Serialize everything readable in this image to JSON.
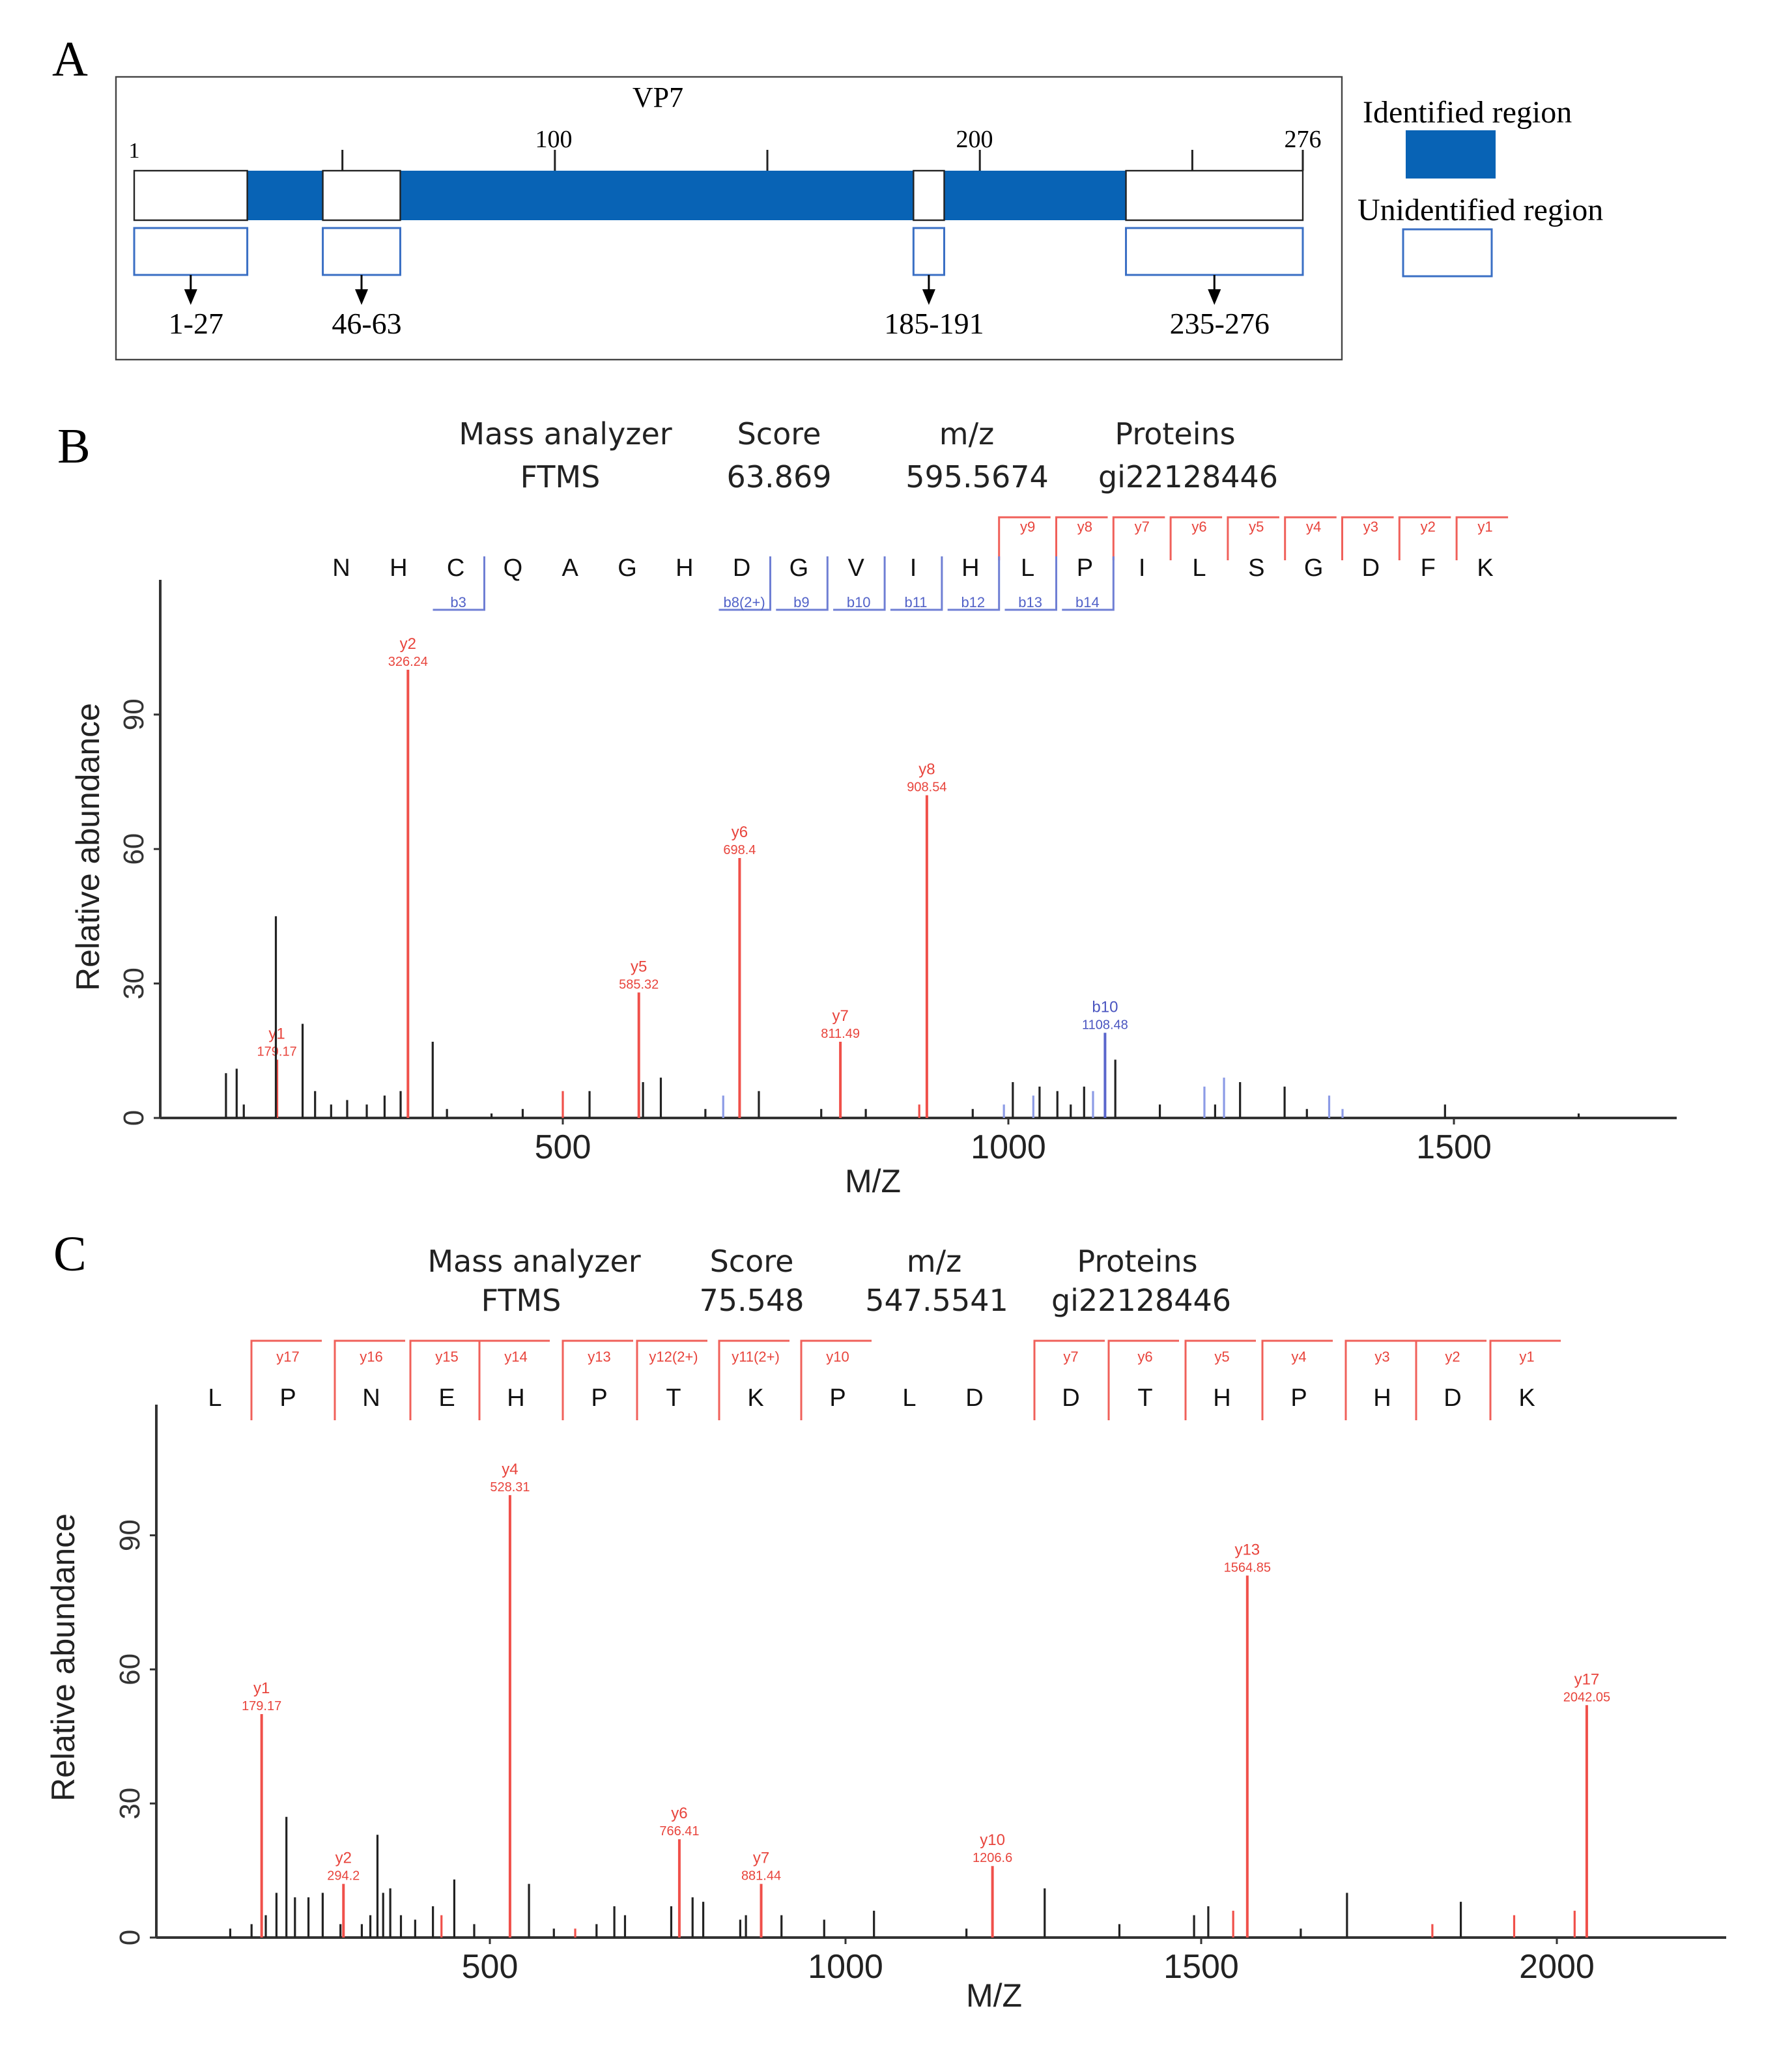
{
  "panel_labels": {
    "a": "A",
    "b": "B",
    "c": "C"
  },
  "panel_a": {
    "title": "VP7",
    "scale_labels": [
      "1",
      "100",
      "200",
      "276"
    ],
    "protein_length": 276,
    "unidentified_regions": [
      {
        "start": 1,
        "end": 27,
        "label": "1-27"
      },
      {
        "start": 46,
        "end": 63,
        "label": "46-63"
      },
      {
        "start": 185,
        "end": 191,
        "label": "185-191"
      },
      {
        "start": 235,
        "end": 276,
        "label": "235-276"
      }
    ],
    "legend": {
      "identified": "Identified region",
      "unidentified": "Unidentified region"
    },
    "colors": {
      "identified": "#0863b5",
      "unidentified_outline": "#3a6fc4"
    }
  },
  "chart_data": [
    {
      "type": "bar",
      "panel": "B",
      "header": {
        "mass_analyzer_label": "Mass analyzer",
        "mass_analyzer": "FTMS",
        "score_label": "Score",
        "score": "63.869",
        "mz_label": "m/z",
        "mz": "595.5674",
        "proteins_label": "Proteins",
        "protein": "gi22128446"
      },
      "sequence": [
        "N",
        "H",
        "C",
        "Q",
        "A",
        "G",
        "H",
        "D",
        "G",
        "V",
        "I",
        "H",
        "L",
        "P",
        "I",
        "L",
        "S",
        "G",
        "D",
        "F",
        "K"
      ],
      "y_ions": [
        {
          "label": "y9",
          "pos": 12
        },
        {
          "label": "y8",
          "pos": 13
        },
        {
          "label": "y7",
          "pos": 14
        },
        {
          "label": "y6",
          "pos": 15
        },
        {
          "label": "y5",
          "pos": 16
        },
        {
          "label": "y4",
          "pos": 17
        },
        {
          "label": "y3",
          "pos": 18
        },
        {
          "label": "y2",
          "pos": 19
        },
        {
          "label": "y1",
          "pos": 20
        }
      ],
      "b_ions": [
        {
          "label": "b3",
          "pos": 2
        },
        {
          "label": "b8(2+)",
          "pos": 7
        },
        {
          "label": "b9",
          "pos": 8
        },
        {
          "label": "b10",
          "pos": 9
        },
        {
          "label": "b11",
          "pos": 10
        },
        {
          "label": "b12",
          "pos": 11
        },
        {
          "label": "b13",
          "pos": 12
        },
        {
          "label": "b14",
          "pos": 13
        }
      ],
      "xlabel": "M/Z",
      "ylabel": "Relative abundance",
      "xticks": [
        "500",
        "1000",
        "1500"
      ],
      "yticks": [
        "0",
        "30",
        "60",
        "90"
      ],
      "xlim": [
        0,
        1760
      ],
      "ylim": [
        0,
        120
      ],
      "peaks": [
        {
          "mz": 179.17,
          "i": 13,
          "type": "y",
          "ion": "y1",
          "mz_label": "179.17"
        },
        {
          "mz": 326.24,
          "i": 100,
          "type": "y",
          "ion": "y2",
          "mz_label": "326.24"
        },
        {
          "mz": 585.32,
          "i": 28,
          "type": "y",
          "ion": "y5",
          "mz_label": "585.32"
        },
        {
          "mz": 698.4,
          "i": 58,
          "type": "y",
          "ion": "y6",
          "mz_label": "698.4"
        },
        {
          "mz": 811.49,
          "i": 17,
          "type": "y",
          "ion": "y7",
          "mz_label": "811.49"
        },
        {
          "mz": 908.54,
          "i": 72,
          "type": "y",
          "ion": "y8",
          "mz_label": "908.54"
        },
        {
          "mz": 1108.48,
          "i": 19,
          "type": "b",
          "ion": "b10",
          "mz_label": "1108.48"
        },
        {
          "mz": 122,
          "i": 10,
          "type": "o"
        },
        {
          "mz": 134,
          "i": 11,
          "type": "o"
        },
        {
          "mz": 142,
          "i": 3,
          "type": "o"
        },
        {
          "mz": 178,
          "i": 45,
          "type": "o"
        },
        {
          "mz": 208,
          "i": 21,
          "type": "o"
        },
        {
          "mz": 222,
          "i": 6,
          "type": "o"
        },
        {
          "mz": 240,
          "i": 3,
          "type": "o"
        },
        {
          "mz": 258,
          "i": 4,
          "type": "o"
        },
        {
          "mz": 280,
          "i": 3,
          "type": "o"
        },
        {
          "mz": 300,
          "i": 5,
          "type": "o"
        },
        {
          "mz": 318,
          "i": 6,
          "type": "o"
        },
        {
          "mz": 354,
          "i": 17,
          "type": "o"
        },
        {
          "mz": 370,
          "i": 2,
          "type": "o"
        },
        {
          "mz": 420,
          "i": 1,
          "type": "o"
        },
        {
          "mz": 455,
          "i": 2,
          "type": "o"
        },
        {
          "mz": 500,
          "i": 6,
          "type": "y"
        },
        {
          "mz": 530,
          "i": 6,
          "type": "o"
        },
        {
          "mz": 590,
          "i": 8,
          "type": "o"
        },
        {
          "mz": 610,
          "i": 9,
          "type": "o"
        },
        {
          "mz": 660,
          "i": 2,
          "type": "o"
        },
        {
          "mz": 680,
          "i": 5,
          "type": "b"
        },
        {
          "mz": 720,
          "i": 6,
          "type": "o"
        },
        {
          "mz": 790,
          "i": 2,
          "type": "o"
        },
        {
          "mz": 840,
          "i": 2,
          "type": "o"
        },
        {
          "mz": 900,
          "i": 3,
          "type": "y"
        },
        {
          "mz": 960,
          "i": 2,
          "type": "o"
        },
        {
          "mz": 995,
          "i": 3,
          "type": "b"
        },
        {
          "mz": 1005,
          "i": 8,
          "type": "o"
        },
        {
          "mz": 1028,
          "i": 5,
          "type": "b"
        },
        {
          "mz": 1035,
          "i": 7,
          "type": "o"
        },
        {
          "mz": 1055,
          "i": 6,
          "type": "o"
        },
        {
          "mz": 1070,
          "i": 3,
          "type": "o"
        },
        {
          "mz": 1085,
          "i": 7,
          "type": "o"
        },
        {
          "mz": 1095,
          "i": 6,
          "type": "b"
        },
        {
          "mz": 1120,
          "i": 13,
          "type": "o"
        },
        {
          "mz": 1170,
          "i": 3,
          "type": "o"
        },
        {
          "mz": 1220,
          "i": 7,
          "type": "b"
        },
        {
          "mz": 1232,
          "i": 3,
          "type": "o"
        },
        {
          "mz": 1242,
          "i": 9,
          "type": "b"
        },
        {
          "mz": 1260,
          "i": 8,
          "type": "o"
        },
        {
          "mz": 1310,
          "i": 7,
          "type": "o"
        },
        {
          "mz": 1335,
          "i": 2,
          "type": "o"
        },
        {
          "mz": 1360,
          "i": 5,
          "type": "b"
        },
        {
          "mz": 1375,
          "i": 2,
          "type": "b"
        },
        {
          "mz": 1490,
          "i": 3,
          "type": "o"
        },
        {
          "mz": 1640,
          "i": 1,
          "type": "o"
        }
      ]
    },
    {
      "type": "bar",
      "panel": "C",
      "header": {
        "mass_analyzer_label": "Mass analyzer",
        "mass_analyzer": "FTMS",
        "score_label": "Score",
        "score": "75.548",
        "mz_label": "m/z",
        "mz": "547.5541",
        "proteins_label": "Proteins",
        "protein": "gi22128446"
      },
      "sequence": [
        "L",
        "P",
        "N",
        "E",
        "H",
        "P",
        "T",
        "K",
        "P",
        "L",
        "D",
        "D",
        "T",
        "H",
        "P",
        "H",
        "D",
        "K"
      ],
      "y_ions": [
        {
          "label": "y17",
          "pos": 1
        },
        {
          "label": "y16",
          "pos": 2
        },
        {
          "label": "y15",
          "pos": 3
        },
        {
          "label": "y14",
          "pos": 4
        },
        {
          "label": "y13",
          "pos": 5
        },
        {
          "label": "y12(2+)",
          "pos": 6
        },
        {
          "label": "y11(2+)",
          "pos": 7
        },
        {
          "label": "y10",
          "pos": 8
        },
        {
          "label": "y7",
          "pos": 11
        },
        {
          "label": "y6",
          "pos": 12
        },
        {
          "label": "y5",
          "pos": 13
        },
        {
          "label": "y4",
          "pos": 14
        },
        {
          "label": "y3",
          "pos": 15
        },
        {
          "label": "y2",
          "pos": 16
        },
        {
          "label": "y1",
          "pos": 17
        }
      ],
      "b_ions": [],
      "xlabel": "M/Z",
      "ylabel": "Relative abundance",
      "xticks": [
        "500",
        "1000",
        "1500",
        "2000"
      ],
      "yticks": [
        "0",
        "30",
        "60",
        "90"
      ],
      "xlim": [
        0,
        2240
      ],
      "ylim": [
        0,
        120
      ],
      "peaks": [
        {
          "mz": 179.17,
          "i": 50,
          "type": "y",
          "ion": "y1",
          "mz_label": "179.17"
        },
        {
          "mz": 294.2,
          "i": 12,
          "type": "y",
          "ion": "y2",
          "mz_label": "294.2"
        },
        {
          "mz": 528.31,
          "i": 99,
          "type": "y",
          "ion": "y4",
          "mz_label": "528.31"
        },
        {
          "mz": 766.41,
          "i": 22,
          "type": "y",
          "ion": "y6",
          "mz_label": "766.41"
        },
        {
          "mz": 881.44,
          "i": 12,
          "type": "y",
          "ion": "y7",
          "mz_label": "881.44"
        },
        {
          "mz": 1206.6,
          "i": 16,
          "type": "y",
          "ion": "y10",
          "mz_label": "1206.6"
        },
        {
          "mz": 1564.85,
          "i": 81,
          "type": "y",
          "ion": "y13",
          "mz_label": "1564.85"
        },
        {
          "mz": 2042.05,
          "i": 52,
          "type": "y",
          "ion": "y17",
          "mz_label": "2042.05"
        },
        {
          "mz": 135,
          "i": 2,
          "type": "o"
        },
        {
          "mz": 165,
          "i": 3,
          "type": "o"
        },
        {
          "mz": 185,
          "i": 5,
          "type": "o"
        },
        {
          "mz": 200,
          "i": 10,
          "type": "o"
        },
        {
          "mz": 214,
          "i": 27,
          "type": "o"
        },
        {
          "mz": 226,
          "i": 9,
          "type": "o"
        },
        {
          "mz": 245,
          "i": 9,
          "type": "o"
        },
        {
          "mz": 265,
          "i": 10,
          "type": "o"
        },
        {
          "mz": 290,
          "i": 3,
          "type": "o"
        },
        {
          "mz": 320,
          "i": 3,
          "type": "o"
        },
        {
          "mz": 332,
          "i": 5,
          "type": "o"
        },
        {
          "mz": 342,
          "i": 23,
          "type": "o"
        },
        {
          "mz": 350,
          "i": 10,
          "type": "o"
        },
        {
          "mz": 360,
          "i": 11,
          "type": "o"
        },
        {
          "mz": 375,
          "i": 5,
          "type": "o"
        },
        {
          "mz": 395,
          "i": 4,
          "type": "o"
        },
        {
          "mz": 420,
          "i": 7,
          "type": "o"
        },
        {
          "mz": 432,
          "i": 5,
          "type": "y"
        },
        {
          "mz": 450,
          "i": 13,
          "type": "o"
        },
        {
          "mz": 478,
          "i": 3,
          "type": "o"
        },
        {
          "mz": 555,
          "i": 12,
          "type": "o"
        },
        {
          "mz": 590,
          "i": 2,
          "type": "o"
        },
        {
          "mz": 620,
          "i": 2,
          "type": "y"
        },
        {
          "mz": 650,
          "i": 3,
          "type": "o"
        },
        {
          "mz": 675,
          "i": 7,
          "type": "o"
        },
        {
          "mz": 690,
          "i": 5,
          "type": "o"
        },
        {
          "mz": 755,
          "i": 7,
          "type": "o"
        },
        {
          "mz": 785,
          "i": 9,
          "type": "o"
        },
        {
          "mz": 800,
          "i": 8,
          "type": "o"
        },
        {
          "mz": 852,
          "i": 4,
          "type": "o"
        },
        {
          "mz": 860,
          "i": 5,
          "type": "o"
        },
        {
          "mz": 910,
          "i": 5,
          "type": "o"
        },
        {
          "mz": 970,
          "i": 4,
          "type": "o"
        },
        {
          "mz": 1040,
          "i": 6,
          "type": "o"
        },
        {
          "mz": 1170,
          "i": 2,
          "type": "o"
        },
        {
          "mz": 1280,
          "i": 11,
          "type": "o"
        },
        {
          "mz": 1385,
          "i": 3,
          "type": "o"
        },
        {
          "mz": 1490,
          "i": 5,
          "type": "o"
        },
        {
          "mz": 1510,
          "i": 7,
          "type": "o"
        },
        {
          "mz": 1545,
          "i": 6,
          "type": "y"
        },
        {
          "mz": 1640,
          "i": 2,
          "type": "o"
        },
        {
          "mz": 1705,
          "i": 10,
          "type": "o"
        },
        {
          "mz": 1825,
          "i": 3,
          "type": "y"
        },
        {
          "mz": 1865,
          "i": 8,
          "type": "o"
        },
        {
          "mz": 1940,
          "i": 5,
          "type": "y"
        },
        {
          "mz": 2025,
          "i": 6,
          "type": "y"
        }
      ]
    }
  ]
}
